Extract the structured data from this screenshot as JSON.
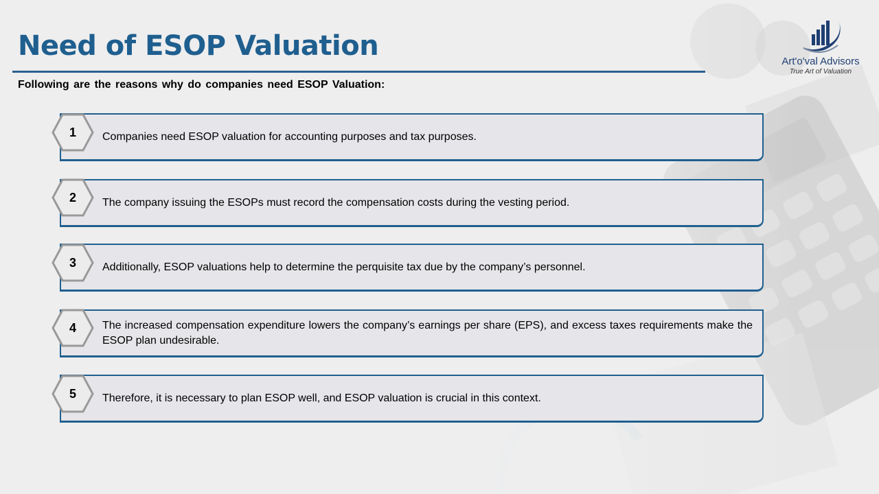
{
  "title": "Need of ESOP Valuation",
  "subtitle": "Following are the reasons why do companies need ESOP Valuation:",
  "logo": {
    "name": "Art'o'val Advisors",
    "tagline": "True Art of Valuation"
  },
  "items": [
    {
      "number": "1",
      "text": "Companies need ESOP valuation for accounting purposes and tax purposes."
    },
    {
      "number": "2",
      "text": "The company issuing the ESOPs must record the compensation costs during the vesting period."
    },
    {
      "number": "3",
      "text": "Additionally, ESOP valuations help to determine the perquisite tax due by the company’s personnel."
    },
    {
      "number": "4",
      "text": "The increased compensation expenditure lowers the company’s earnings per share (EPS), and excess taxes requirements make the ESOP plan undesirable."
    },
    {
      "number": "5",
      "text": "Therefore, it is necessary to plan ESOP well, and ESOP valuation is crucial in this context."
    }
  ],
  "colors": {
    "accent": "#1f5f8f",
    "card_bg": "#e6e5e9",
    "page_bg": "#eeeeee"
  }
}
